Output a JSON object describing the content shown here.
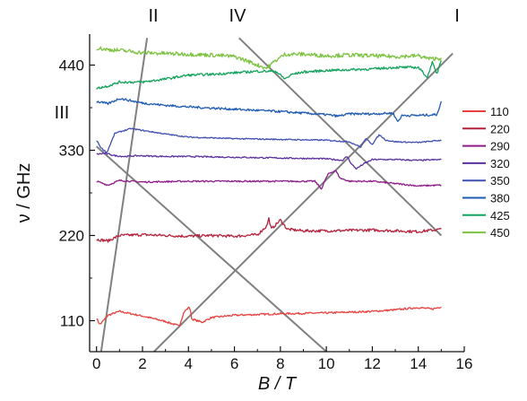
{
  "chart_data": {
    "type": "line",
    "xlabel": "B / T",
    "ylabel": "ν / GHz",
    "xlim": [
      -0.3,
      16.0
    ],
    "ylim": [
      70,
      480
    ],
    "x_ticks": [
      0,
      2,
      4,
      6,
      8,
      10,
      12,
      14,
      16
    ],
    "y_ticks": [
      110,
      220,
      330,
      440
    ],
    "grid": false,
    "legend": {
      "placement": "right",
      "entries": [
        "110",
        "220",
        "290",
        "320",
        "350",
        "380",
        "425",
        "450"
      ]
    },
    "series": [
      {
        "name": "110",
        "color": "#e8413e",
        "base": 110,
        "points": [
          [
            0,
            113
          ],
          [
            0.15,
            105
          ],
          [
            0.5,
            117
          ],
          [
            1,
            122
          ],
          [
            2,
            116
          ],
          [
            3,
            109
          ],
          [
            3.6,
            103
          ],
          [
            3.8,
            121
          ],
          [
            4.05,
            128
          ],
          [
            4.15,
            112
          ],
          [
            4.6,
            108
          ],
          [
            5,
            114
          ],
          [
            6,
            117
          ],
          [
            8,
            119
          ],
          [
            10,
            120
          ],
          [
            11,
            121
          ],
          [
            12,
            122
          ],
          [
            13,
            124
          ],
          [
            14,
            127
          ],
          [
            14.6,
            125
          ],
          [
            15,
            128
          ]
        ]
      },
      {
        "name": "220",
        "color": "#b5213a",
        "base": 220,
        "points": [
          [
            0,
            215
          ],
          [
            0.5,
            213
          ],
          [
            1,
            220
          ],
          [
            2,
            221
          ],
          [
            3,
            220
          ],
          [
            4,
            219
          ],
          [
            5,
            220
          ],
          [
            6,
            219
          ],
          [
            7,
            221
          ],
          [
            7.4,
            232
          ],
          [
            7.5,
            242
          ],
          [
            7.6,
            228
          ],
          [
            8,
            240
          ],
          [
            8.3,
            228
          ],
          [
            9,
            226
          ],
          [
            10,
            226
          ],
          [
            12,
            227
          ],
          [
            14,
            225
          ],
          [
            15,
            228
          ]
        ]
      },
      {
        "name": "290",
        "color": "#8e1c8a",
        "base": 290,
        "points": [
          [
            0,
            290
          ],
          [
            0.5,
            285
          ],
          [
            1,
            291
          ],
          [
            2,
            289
          ],
          [
            4,
            290
          ],
          [
            6,
            290
          ],
          [
            8,
            290
          ],
          [
            9.5,
            290
          ],
          [
            9.8,
            280
          ],
          [
            9.95,
            292
          ],
          [
            10.1,
            300
          ],
          [
            10.4,
            304
          ],
          [
            10.6,
            294
          ],
          [
            11,
            290
          ],
          [
            12,
            290
          ],
          [
            13,
            287
          ],
          [
            14,
            284
          ],
          [
            15,
            285
          ]
        ]
      },
      {
        "name": "320",
        "color": "#5a2f9e",
        "base": 320,
        "points": [
          [
            0,
            325
          ],
          [
            0.4,
            326
          ],
          [
            0.8,
            323
          ],
          [
            1.2,
            322
          ],
          [
            1.8,
            323
          ],
          [
            3,
            322
          ],
          [
            4,
            322
          ],
          [
            6,
            321
          ],
          [
            8,
            320
          ],
          [
            10,
            319
          ],
          [
            10.7,
            317
          ],
          [
            10.9,
            322
          ],
          [
            11.1,
            312
          ],
          [
            11.3,
            306
          ],
          [
            11.6,
            312
          ],
          [
            12,
            318
          ],
          [
            13,
            318
          ],
          [
            14,
            317
          ],
          [
            15,
            318
          ]
        ]
      },
      {
        "name": "350",
        "color": "#4050b0",
        "base": 350,
        "points": [
          [
            0,
            343
          ],
          [
            0.2,
            333
          ],
          [
            0.45,
            327
          ],
          [
            0.8,
            352
          ],
          [
            1.5,
            358
          ],
          [
            3,
            351
          ],
          [
            4,
            347
          ],
          [
            6,
            345
          ],
          [
            8,
            344
          ],
          [
            10,
            343
          ],
          [
            11,
            341
          ],
          [
            11.5,
            334
          ],
          [
            11.7,
            345
          ],
          [
            12,
            338
          ],
          [
            12.3,
            350
          ],
          [
            12.6,
            343
          ],
          [
            13,
            341
          ],
          [
            14,
            340
          ],
          [
            15,
            343
          ]
        ]
      },
      {
        "name": "380",
        "color": "#1f5bb3",
        "base": 380,
        "points": [
          [
            0,
            393
          ],
          [
            0.5,
            390
          ],
          [
            1,
            397
          ],
          [
            2,
            391
          ],
          [
            3,
            388
          ],
          [
            4,
            386
          ],
          [
            6,
            383
          ],
          [
            8,
            380
          ],
          [
            9,
            378
          ],
          [
            10,
            376
          ],
          [
            10.5,
            374
          ],
          [
            11,
            377
          ],
          [
            12,
            377
          ],
          [
            12.9,
            378
          ],
          [
            13.1,
            367
          ],
          [
            13.3,
            375
          ],
          [
            14,
            375
          ],
          [
            14.8,
            376
          ],
          [
            15,
            392
          ]
        ]
      },
      {
        "name": "425",
        "color": "#13a35c",
        "base": 425,
        "points": [
          [
            0,
            410
          ],
          [
            0.5,
            413
          ],
          [
            1,
            418
          ],
          [
            2,
            418
          ],
          [
            3,
            422
          ],
          [
            4,
            427
          ],
          [
            5,
            428
          ],
          [
            6,
            430
          ],
          [
            7,
            432
          ],
          [
            7.8,
            432
          ],
          [
            8.2,
            422
          ],
          [
            8.5,
            428
          ],
          [
            9,
            431
          ],
          [
            10,
            433
          ],
          [
            11,
            434
          ],
          [
            12,
            435
          ],
          [
            13,
            437
          ],
          [
            14,
            437
          ],
          [
            14.4,
            424
          ],
          [
            14.6,
            444
          ],
          [
            14.8,
            428
          ],
          [
            15,
            447
          ]
        ]
      },
      {
        "name": "450",
        "color": "#7cc23f",
        "base": 450,
        "points": [
          [
            0,
            462
          ],
          [
            0.5,
            460
          ],
          [
            1,
            459
          ],
          [
            2,
            456
          ],
          [
            3,
            455
          ],
          [
            4,
            454
          ],
          [
            5,
            453
          ],
          [
            6,
            451
          ],
          [
            6.5,
            446
          ],
          [
            7,
            440
          ],
          [
            7.4,
            436
          ],
          [
            7.8,
            446
          ],
          [
            8.2,
            454
          ],
          [
            9,
            454
          ],
          [
            10,
            452
          ],
          [
            11,
            453
          ],
          [
            12,
            452
          ],
          [
            13,
            451
          ],
          [
            14,
            452
          ],
          [
            14.5,
            448
          ],
          [
            15,
            449
          ]
        ]
      }
    ],
    "reference_lines": [
      {
        "label": "I",
        "points": [
          [
            2.5,
            70
          ],
          [
            15.5,
            455
          ]
        ]
      },
      {
        "label": "II",
        "points": [
          [
            0.2,
            70
          ],
          [
            2.2,
            475
          ]
        ]
      },
      {
        "label": "III",
        "points": [
          [
            0,
            335
          ],
          [
            10,
            70
          ]
        ]
      },
      {
        "label": "IV",
        "points": [
          [
            6.2,
            475
          ],
          [
            15,
            220
          ]
        ]
      }
    ]
  }
}
